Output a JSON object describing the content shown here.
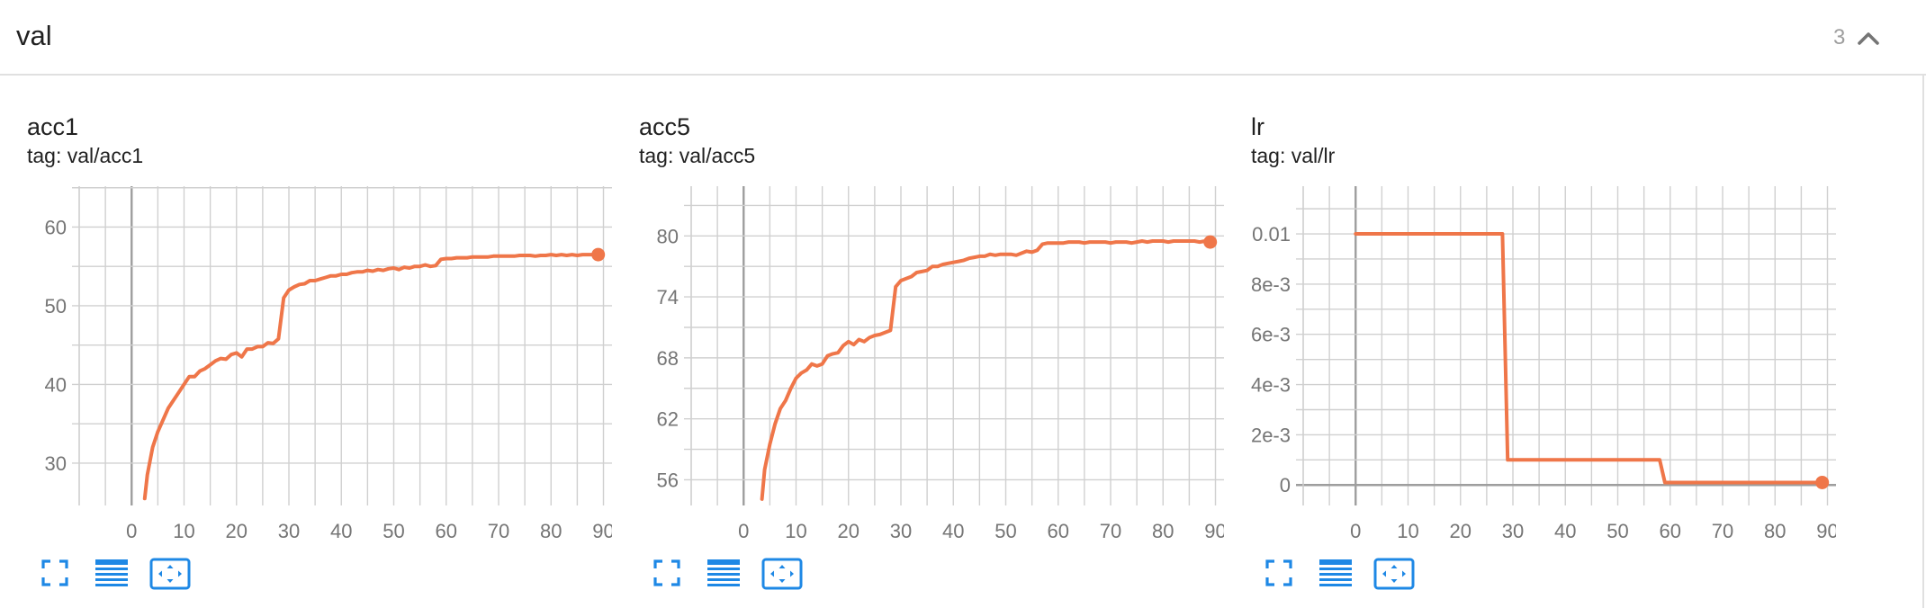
{
  "group": {
    "title": "val",
    "count": "3"
  },
  "icons": {
    "collapse": "chevron-up-icon",
    "fullscreen": "fullscreen-icon",
    "data_table": "data-table-icon",
    "fit_domain": "fit-domain-icon"
  },
  "colors": {
    "series": "#ef7649",
    "icon": "#1e88e5"
  },
  "cards": [
    {
      "title": "acc1",
      "tag": "tag: val/acc1"
    },
    {
      "title": "acc5",
      "tag": "tag: val/acc5"
    },
    {
      "title": "lr",
      "tag": "tag: val/lr"
    }
  ],
  "chart_data": [
    {
      "type": "line",
      "title": "acc1",
      "xlim": [
        -10,
        93
      ],
      "ylim": [
        25.3,
        65.2
      ],
      "x_ticks": [
        0,
        10,
        20,
        30,
        40,
        50,
        60,
        70,
        80,
        90
      ],
      "y_ticks": [
        30,
        40,
        50,
        60
      ],
      "y_tick_labels": [
        "30",
        "40",
        "50",
        "60"
      ],
      "grid": true,
      "series": [
        {
          "x": [
            2.5,
            3,
            4,
            5,
            6,
            7,
            8,
            9,
            10,
            11,
            12,
            13,
            14,
            15,
            16,
            17,
            18,
            19,
            20,
            21,
            22,
            23,
            24,
            25,
            26,
            27,
            28,
            29,
            30,
            31,
            32,
            33,
            34,
            35,
            36,
            37,
            38,
            39,
            40,
            41,
            42,
            43,
            44,
            45,
            46,
            47,
            48,
            49,
            50,
            51,
            52,
            53,
            54,
            55,
            56,
            57,
            58,
            59,
            60,
            61,
            62,
            63,
            64,
            65,
            66,
            67,
            68,
            69,
            70,
            71,
            72,
            73,
            74,
            75,
            76,
            77,
            78,
            79,
            80,
            81,
            82,
            83,
            84,
            85,
            86,
            87,
            88,
            89
          ],
          "y": [
            25.5,
            28.5,
            32,
            34,
            35.5,
            37,
            38,
            39,
            40,
            41,
            41,
            41.7,
            42,
            42.5,
            43,
            43.3,
            43.2,
            43.8,
            44,
            43.5,
            44.5,
            44.5,
            44.8,
            44.8,
            45.3,
            45.2,
            45.8,
            51,
            52,
            52.4,
            52.7,
            52.8,
            53.2,
            53.2,
            53.4,
            53.6,
            53.8,
            53.8,
            54,
            54,
            54.2,
            54.3,
            54.3,
            54.5,
            54.4,
            54.6,
            54.5,
            54.7,
            54.8,
            54.6,
            54.9,
            54.8,
            55,
            55,
            55.2,
            55,
            55.1,
            55.9,
            56,
            56,
            56.1,
            56.1,
            56.1,
            56.2,
            56.2,
            56.2,
            56.2,
            56.3,
            56.3,
            56.3,
            56.3,
            56.3,
            56.4,
            56.4,
            56.4,
            56.3,
            56.4,
            56.4,
            56.5,
            56.4,
            56.5,
            56.4,
            56.5,
            56.4,
            56.5,
            56.5,
            56.5,
            56.5
          ]
        }
      ]
    },
    {
      "type": "line",
      "title": "acc5",
      "xlim": [
        -10,
        93
      ],
      "ylim": [
        54,
        84.9
      ],
      "x_ticks": [
        0,
        10,
        20,
        30,
        40,
        50,
        60,
        70,
        80,
        90
      ],
      "y_ticks": [
        56,
        62,
        68,
        74,
        80
      ],
      "y_tick_labels": [
        "56",
        "62",
        "68",
        "74",
        "80"
      ],
      "grid": true,
      "series": [
        {
          "x": [
            3.5,
            4,
            5,
            6,
            7,
            8,
            9,
            10,
            11,
            12,
            13,
            14,
            15,
            16,
            17,
            18,
            19,
            20,
            21,
            22,
            23,
            24,
            25,
            26,
            27,
            28,
            29,
            30,
            31,
            32,
            33,
            34,
            35,
            36,
            37,
            38,
            39,
            40,
            41,
            42,
            43,
            44,
            45,
            46,
            47,
            48,
            49,
            50,
            51,
            52,
            53,
            54,
            55,
            56,
            57,
            58,
            59,
            60,
            61,
            62,
            63,
            64,
            65,
            66,
            67,
            68,
            69,
            70,
            71,
            72,
            73,
            74,
            75,
            76,
            77,
            78,
            79,
            80,
            81,
            82,
            83,
            84,
            85,
            86,
            87,
            88,
            89
          ],
          "y": [
            54.1,
            57,
            59.5,
            61.5,
            63,
            63.8,
            65,
            66,
            66.5,
            66.8,
            67.4,
            67.2,
            67.4,
            68.2,
            68.4,
            68.5,
            69.2,
            69.6,
            69.3,
            69.8,
            69.6,
            70,
            70.2,
            70.3,
            70.5,
            70.7,
            75,
            75.6,
            75.8,
            76,
            76.4,
            76.5,
            76.6,
            77,
            77,
            77.2,
            77.3,
            77.4,
            77.5,
            77.6,
            77.8,
            77.9,
            78,
            78,
            78.2,
            78.1,
            78.2,
            78.2,
            78.2,
            78.1,
            78.3,
            78.5,
            78.4,
            78.6,
            79.2,
            79.3,
            79.3,
            79.3,
            79.3,
            79.4,
            79.4,
            79.4,
            79.3,
            79.4,
            79.4,
            79.4,
            79.4,
            79.3,
            79.4,
            79.4,
            79.4,
            79.3,
            79.4,
            79.5,
            79.4,
            79.5,
            79.5,
            79.5,
            79.4,
            79.5,
            79.5,
            79.5,
            79.5,
            79.5,
            79.4,
            79.5,
            79.4
          ]
        }
      ]
    },
    {
      "type": "line",
      "title": "lr",
      "xlim": [
        -10,
        93
      ],
      "ylim": [
        -0.0006,
        0.0119
      ],
      "x_ticks": [
        0,
        10,
        20,
        30,
        40,
        50,
        60,
        70,
        80,
        90
      ],
      "y_ticks": [
        0,
        0.002,
        0.004,
        0.006,
        0.008,
        0.01
      ],
      "y_tick_labels": [
        "0",
        "2e-3",
        "4e-3",
        "6e-3",
        "8e-3",
        "0.01"
      ],
      "grid": true,
      "series": [
        {
          "x": [
            0,
            25,
            28,
            29,
            55,
            58,
            59,
            89
          ],
          "y": [
            0.01,
            0.01,
            0.01,
            0.001,
            0.001,
            0.001,
            0.0001,
            0.0001
          ]
        }
      ]
    }
  ]
}
